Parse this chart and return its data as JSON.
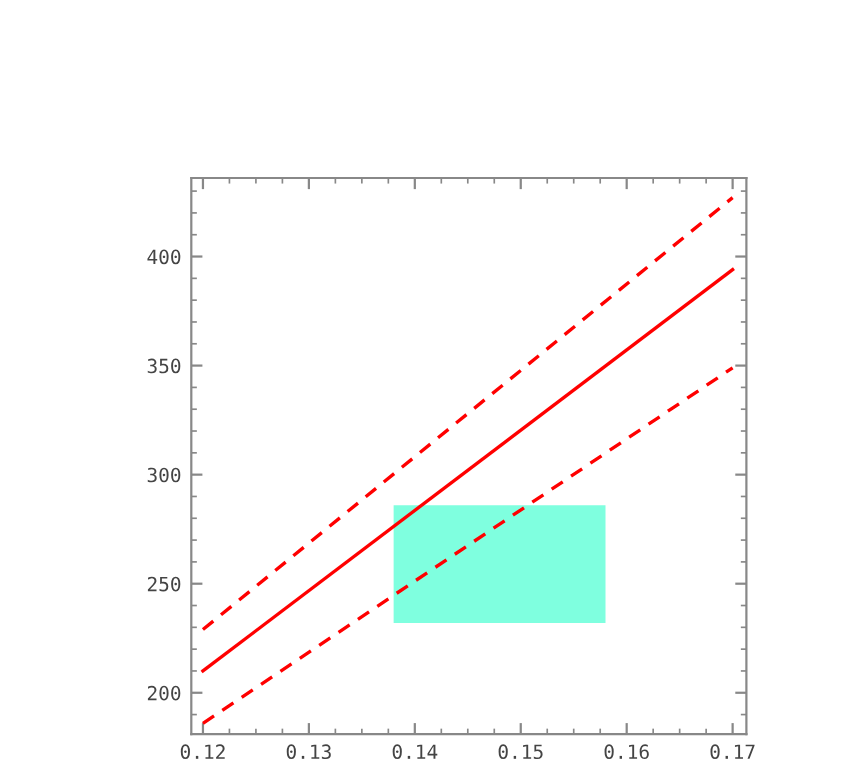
{
  "chart_data": {
    "type": "line",
    "xlim": [
      0.1189,
      0.1713
    ],
    "ylim": [
      181,
      436
    ],
    "xticks": [
      0.12,
      0.13,
      0.14,
      0.15,
      0.16,
      0.17
    ],
    "yticks": [
      200,
      250,
      300,
      350,
      400
    ],
    "grid": false,
    "legend": false,
    "series": [
      {
        "type": "area",
        "color": "#7fffdf",
        "x": [
          0.138,
          0.158
        ],
        "lower": [
          232,
          232
        ],
        "upper": [
          286,
          286
        ],
        "values": [
          null,
          null
        ]
      },
      {
        "color": "#ff0000",
        "line_style": "dashed",
        "x": [
          0.12,
          0.17
        ],
        "values": [
          229,
          427
        ]
      },
      {
        "color": "#ff0000",
        "line_style": "solid",
        "x": [
          0.12,
          0.17
        ],
        "values": [
          210,
          394
        ]
      },
      {
        "color": "#ff0000",
        "line_style": "dashed",
        "x": [
          0.12,
          0.17
        ],
        "values": [
          186,
          349
        ]
      }
    ]
  }
}
